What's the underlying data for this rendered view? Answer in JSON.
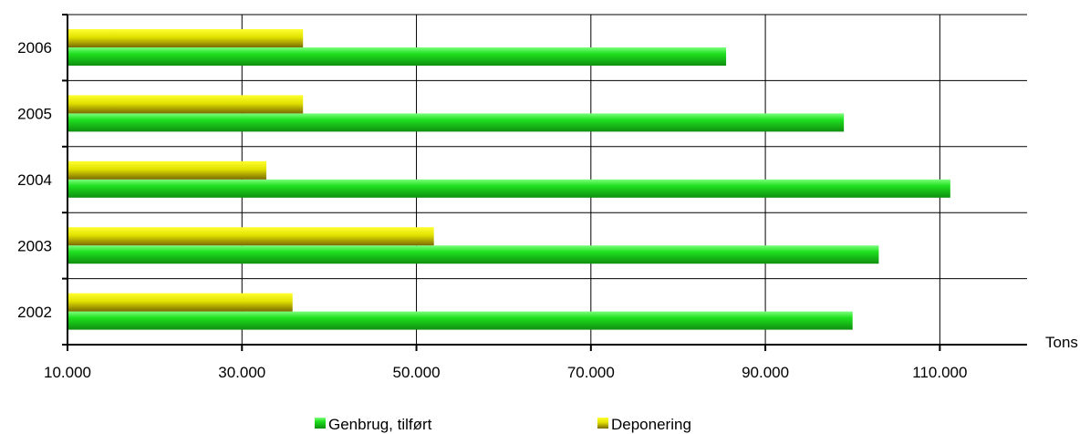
{
  "chart_data": {
    "type": "bar",
    "orientation": "horizontal",
    "categories": [
      "2002",
      "2003",
      "2004",
      "2005",
      "2006"
    ],
    "series": [
      {
        "name": "Genbrug, tilført",
        "values": [
          100000,
          103000,
          111200,
          99000,
          85500
        ],
        "color": "#1fd21f"
      },
      {
        "name": "Deponering",
        "values": [
          35800,
          52000,
          32800,
          37000,
          37000
        ],
        "color": "#e6e600"
      }
    ],
    "xlim": [
      10000,
      120000
    ],
    "x_ticks": [
      "10.000",
      "30.000",
      "50.000",
      "70.000",
      "90.000",
      "110.000"
    ],
    "x_tick_values": [
      10000,
      30000,
      50000,
      70000,
      90000,
      110000
    ],
    "xlabel": "Tons",
    "grid": true,
    "legend_position": "bottom"
  }
}
